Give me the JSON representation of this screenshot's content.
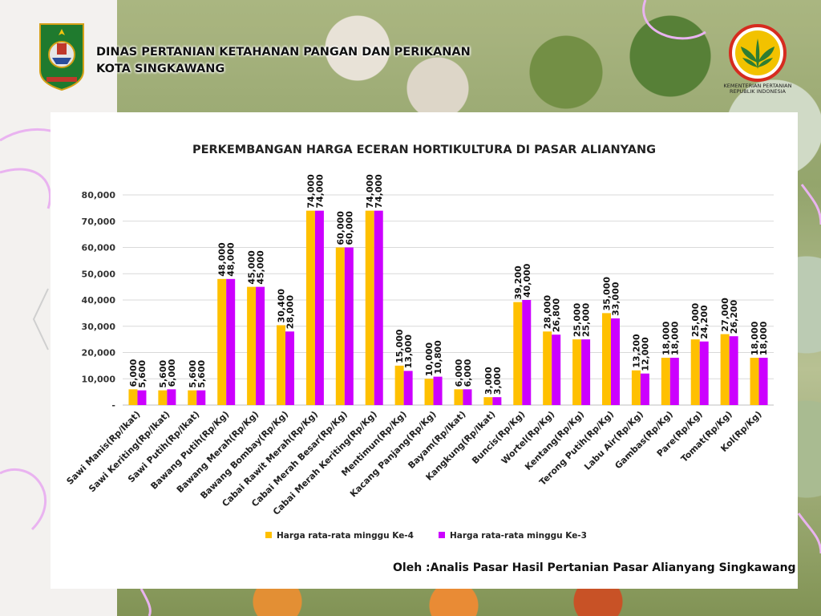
{
  "header": {
    "line1": "DINAS PERTANIAN KETAHANAN PANGAN DAN PERIKANAN",
    "line2": "KOTA SINGKAWANG",
    "ministry_line1": "KEMENTERIAN PERTANIAN",
    "ministry_line2": "REPUBLIK INDONESIA"
  },
  "credit": "Oleh :Analis Pasar Hasil Pertanian Pasar Alianyang Singkawang",
  "colors": {
    "series1": "#FFC000",
    "series2": "#CC00FF",
    "grid": "#d9d9d9",
    "accent_curve": "#e9b3f0"
  },
  "chart_data": {
    "type": "bar",
    "title": "PERKEMBANGAN HARGA ECERAN HORTIKULTURA DI PASAR ALIANYANG",
    "ylim": [
      0,
      80000
    ],
    "yticks": [
      "-",
      "10,000",
      "20,000",
      "30,000",
      "40,000",
      "50,000",
      "60,000",
      "70,000",
      "80,000"
    ],
    "grid": true,
    "legend_position": "bottom",
    "categories": [
      "Sawi Manis(Rp/Ikat)",
      "Sawi Keriting(Rp/Ikat)",
      "Sawi Putih(Rp/Ikat)",
      "Bawang Putih(Rp/Kg)",
      "Bawang Merah(Rp/Kg)",
      "Bawang Bombay(Rp/Kg)",
      "Cabai Rawit Merah(Rp/Kg)",
      "Cabai Merah Besar(Rp/Kg)",
      "Cabai Merah Keriting(Rp/Kg)",
      "Mentimun(Rp/Kg)",
      "Kacang Panjang(Rp/Kg)",
      "Bayam(Rp/Ikat)",
      "Kangkung(Rp/Ikat)",
      "Buncis(Rp/Kg)",
      "Wortel(Rp/Kg)",
      "Kentang(Rp/Kg)",
      "Terong Putih(Rp/Kg)",
      "Labu Air(Rp/Kg)",
      "Gambas(Rp/Kg)",
      "Pare(Rp/Kg)",
      "Tomat(Rp/Kg)",
      "Kol(Rp/Kg)"
    ],
    "series": [
      {
        "name": "Harga rata-rata minggu Ke-4",
        "values": [
          6000,
          5600,
          5600,
          48000,
          45000,
          30400,
          74000,
          60000,
          74000,
          15000,
          10000,
          6000,
          3000,
          39200,
          28000,
          25000,
          35000,
          13200,
          18000,
          25000,
          27000,
          18000
        ],
        "labels": [
          "6,000",
          "5,600",
          "5,600",
          "48,000",
          "45,000",
          "30,400",
          "74,000",
          "60,000",
          "74,000",
          "15,000",
          "10,000",
          "6,000",
          "3,000",
          "39,200",
          "28,000",
          "25,000",
          "35,000",
          "13,200",
          "18,000",
          "25,000",
          "27,000",
          "18,000"
        ]
      },
      {
        "name": "Harga rata-rata minggu Ke-3",
        "values": [
          5600,
          6000,
          5600,
          48000,
          45000,
          28000,
          74000,
          60000,
          74000,
          13000,
          10800,
          6000,
          3000,
          40000,
          26800,
          25000,
          33000,
          12000,
          18000,
          24200,
          26200,
          18000
        ],
        "labels": [
          "5,600",
          "6,000",
          "5,600",
          "48,000",
          "45,000",
          "28,000",
          "74,000",
          "60,000",
          "74,000",
          "13,000",
          "10,800",
          "6,000",
          "3,000",
          "40,000",
          "26,800",
          "25,000",
          "33,000",
          "12,000",
          "18,000",
          "24,200",
          "26,200",
          "18,000"
        ]
      }
    ]
  }
}
